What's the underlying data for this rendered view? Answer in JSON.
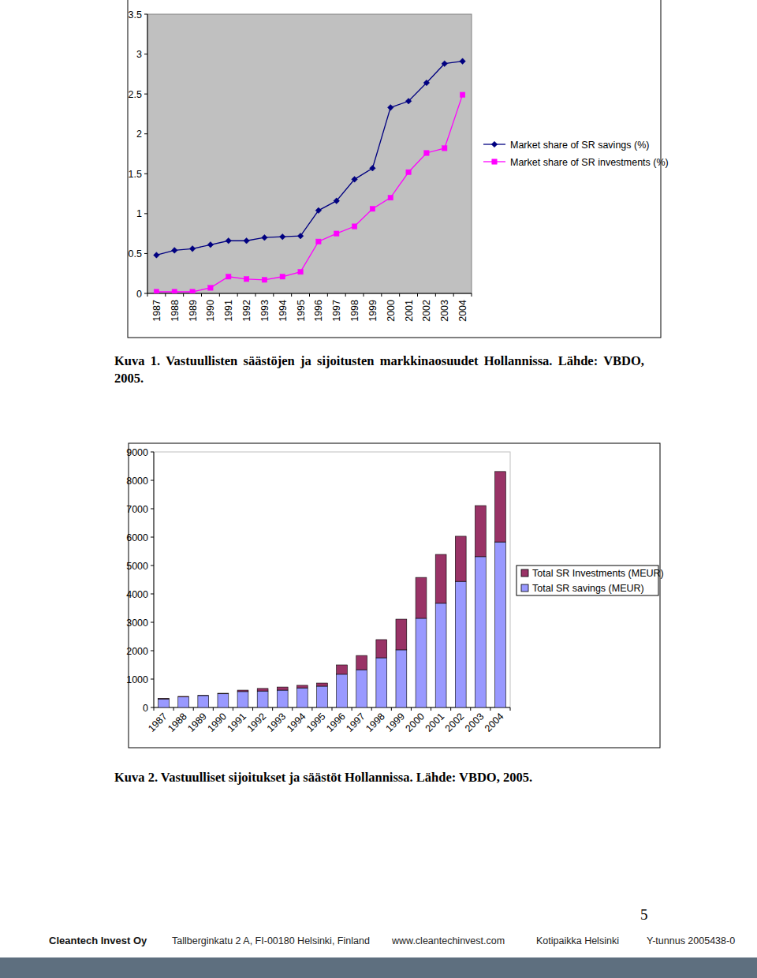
{
  "chart_data": [
    {
      "type": "line",
      "title": "Kuva 1. Vastuullisten säästöjen ja sijoitusten markkinaosuudet Hollannissa. Lähde: VBDO, 2005.",
      "categories": [
        "1987",
        "1988",
        "1989",
        "1990",
        "1991",
        "1992",
        "1993",
        "1994",
        "1995",
        "1996",
        "1997",
        "1998",
        "1999",
        "2000",
        "2001",
        "2002",
        "2003",
        "2004"
      ],
      "series": [
        {
          "name": "Market share of SR savings (%)",
          "color": "#000080",
          "marker": "diamond",
          "values": [
            0.48,
            0.54,
            0.56,
            0.61,
            0.66,
            0.66,
            0.7,
            0.71,
            0.72,
            1.04,
            1.16,
            1.43,
            1.57,
            2.33,
            2.41,
            2.64,
            2.88,
            2.91
          ]
        },
        {
          "name": "Market share of SR investments (%)",
          "color": "#ff00ff",
          "marker": "square",
          "values": [
            0.02,
            0.02,
            0.02,
            0.07,
            0.21,
            0.18,
            0.17,
            0.21,
            0.27,
            0.65,
            0.75,
            0.84,
            1.06,
            1.2,
            1.52,
            1.76,
            1.82,
            2.49
          ]
        }
      ],
      "ylim": [
        0,
        3.5
      ],
      "yticks": [
        0,
        0.5,
        1,
        1.5,
        2,
        2.5,
        3,
        3.5
      ],
      "grid": false,
      "legend": "right"
    },
    {
      "type": "bar",
      "title": "Kuva 2. Vastuulliset sijoitukset ja säästöt Hollannissa. Lähde: VBDO, 2005.",
      "categories": [
        "1987",
        "1988",
        "1989",
        "1990",
        "1991",
        "1992",
        "1993",
        "1994",
        "1995",
        "1996",
        "1997",
        "1998",
        "1999",
        "2000",
        "2001",
        "2002",
        "2003",
        "2004"
      ],
      "series": [
        {
          "name": "Total SR Investments (MEUR)",
          "color": "#993366",
          "values": [
            20,
            20,
            5,
            20,
            50,
            90,
            110,
            90,
            110,
            330,
            500,
            640,
            1080,
            1440,
            1720,
            1590,
            1800,
            2480
          ]
        },
        {
          "name": "Total SR savings (MEUR)",
          "color": "#9999ff",
          "values": [
            300,
            370,
            420,
            480,
            560,
            580,
            610,
            690,
            750,
            1170,
            1330,
            1750,
            2030,
            3140,
            3670,
            4440,
            5310,
            5830
          ]
        }
      ],
      "stacked": true,
      "ylim": [
        0,
        9000
      ],
      "yticks": [
        0,
        1000,
        2000,
        3000,
        4000,
        5000,
        6000,
        7000,
        8000,
        9000
      ],
      "grid": false,
      "legend": "right"
    }
  ],
  "page": {
    "number": 5,
    "footer": {
      "company": "Cleantech Invest Oy",
      "address": "Tallberginkatu 2 A, FI-00180 Helsinki, Finland",
      "web": "www.cleantechinvest.com",
      "domicile": "Kotipaikka Helsinki",
      "business_id": "Y-tunnus 2005438-0"
    }
  }
}
